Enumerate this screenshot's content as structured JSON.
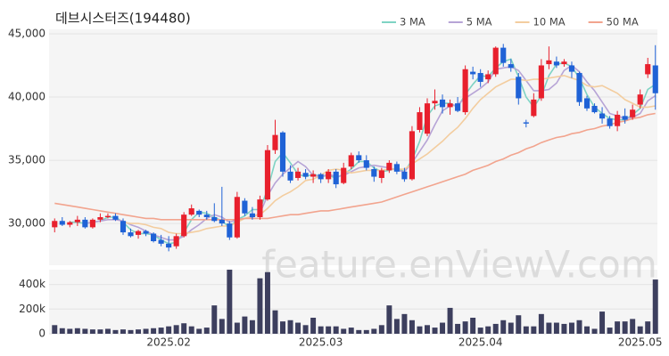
{
  "chart_data": {
    "type": "candlestick",
    "title": "데브시스터즈(194480)",
    "watermark": "feature.enViewV.com",
    "up_color": "#e8202d",
    "down_color": "#1f62d6",
    "categories": [
      null,
      null,
      null,
      null,
      null,
      null,
      null,
      null,
      null,
      null,
      null,
      null,
      null,
      null,
      null,
      "2025.02",
      null,
      null,
      null,
      null,
      null,
      null,
      null,
      null,
      null,
      null,
      null,
      null,
      null,
      null,
      null,
      null,
      null,
      null,
      null,
      "2025.03",
      null,
      null,
      null,
      null,
      null,
      null,
      null,
      null,
      null,
      null,
      null,
      null,
      null,
      null,
      null,
      null,
      null,
      null,
      null,
      null,
      "2025.04",
      null,
      null,
      null,
      null,
      null,
      null,
      null,
      null,
      null,
      null,
      null,
      null,
      null,
      null,
      null,
      null,
      null,
      null,
      null,
      null,
      "2025.05",
      null,
      null
    ],
    "open": [
      29700,
      30200,
      29900,
      30100,
      30300,
      29700,
      30300,
      30500,
      30600,
      30200,
      29300,
      29100,
      29400,
      29200,
      28700,
      28400,
      28200,
      29000,
      30700,
      31000,
      30700,
      30500,
      30300,
      30000,
      28900,
      31800,
      30800,
      30500,
      31900,
      35800,
      37200,
      34100,
      33600,
      34000,
      33700,
      33900,
      33500,
      34100,
      33200,
      34500,
      35400,
      35000,
      34300,
      33600,
      34200,
      34700,
      34100,
      33500,
      37400,
      37100,
      39500,
      39800,
      39200,
      39500,
      38800,
      42000,
      41900,
      41400,
      41800,
      43900,
      42600,
      41600,
      38000,
      38500,
      39900,
      42600,
      42800,
      42600,
      42500,
      41900,
      39900,
      39300,
      38700,
      38300,
      37700,
      38500,
      38400,
      39400,
      41800,
      42500
    ],
    "high": [
      30400,
      30500,
      30200,
      30600,
      30500,
      30400,
      30800,
      30800,
      30800,
      30400,
      29600,
      29500,
      29500,
      29300,
      29100,
      29000,
      29200,
      30900,
      31500,
      31100,
      31000,
      31600,
      32900,
      30200,
      32500,
      32000,
      31300,
      32200,
      36200,
      38200,
      37300,
      34600,
      34400,
      34300,
      34200,
      34000,
      34300,
      34300,
      34800,
      35600,
      35700,
      35400,
      34500,
      34400,
      35000,
      34900,
      34400,
      37700,
      39200,
      39900,
      40600,
      40200,
      39800,
      40000,
      42500,
      42400,
      42200,
      42100,
      44000,
      44200,
      43000,
      41900,
      38200,
      40300,
      43000,
      44000,
      43200,
      43000,
      42800,
      42000,
      40100,
      39500,
      39200,
      38500,
      38900,
      39100,
      39400,
      40600,
      43100,
      44100
    ],
    "low": [
      29300,
      29800,
      29700,
      29800,
      29600,
      29600,
      30100,
      30400,
      30200,
      29100,
      28900,
      28800,
      29000,
      28500,
      28200,
      27800,
      28000,
      28900,
      30600,
      30500,
      30300,
      30100,
      29800,
      28700,
      28800,
      30600,
      30300,
      30300,
      31800,
      35500,
      33700,
      33200,
      33400,
      33500,
      33200,
      33200,
      33200,
      32800,
      33100,
      34300,
      34800,
      34200,
      33300,
      33200,
      34000,
      33900,
      33300,
      33400,
      37200,
      36900,
      39000,
      38700,
      38600,
      38800,
      38600,
      41400,
      40800,
      41100,
      41600,
      42400,
      42000,
      39400,
      37600,
      38400,
      39700,
      42200,
      42300,
      42400,
      41500,
      39300,
      38900,
      38700,
      37900,
      37500,
      37300,
      37900,
      38200,
      39100,
      41500,
      39000
    ],
    "close": [
      30200,
      29900,
      30100,
      30300,
      29700,
      30300,
      30500,
      30600,
      30300,
      29300,
      29000,
      29400,
      29200,
      28600,
      28400,
      28100,
      29000,
      30700,
      31200,
      30700,
      30500,
      30200,
      30000,
      28900,
      32100,
      30800,
      30500,
      31900,
      35800,
      37000,
      34100,
      33400,
      34100,
      33700,
      33900,
      33500,
      34100,
      33100,
      34400,
      35400,
      35000,
      34400,
      33700,
      34200,
      34800,
      34100,
      33500,
      37300,
      38800,
      39500,
      39700,
      39200,
      39500,
      38900,
      42200,
      41800,
      41200,
      41800,
      43900,
      42700,
      42300,
      39900,
      37900,
      39800,
      42500,
      42900,
      42500,
      42800,
      42000,
      39600,
      39100,
      38800,
      38300,
      37700,
      38600,
      38200,
      39000,
      40200,
      42600,
      40300
    ],
    "series": [
      {
        "name": "3 MA",
        "color": "#7fd3c4",
        "values": [
          null,
          null,
          30100,
          30100,
          30000,
          30100,
          30200,
          30500,
          30500,
          30100,
          29500,
          29200,
          29200,
          29100,
          28700,
          28400,
          28500,
          29300,
          30300,
          30900,
          30800,
          30500,
          30200,
          29700,
          30300,
          30600,
          31100,
          31100,
          32700,
          34900,
          35600,
          34800,
          33900,
          33700,
          33900,
          33700,
          33800,
          33600,
          33900,
          34300,
          34900,
          34900,
          34400,
          34100,
          34200,
          34400,
          34100,
          35000,
          36500,
          38500,
          39300,
          39500,
          39500,
          39200,
          40200,
          41000,
          41700,
          41600,
          42300,
          42800,
          43000,
          41600,
          40000,
          39200,
          40100,
          41700,
          42600,
          42700,
          42400,
          41500,
          40200,
          39200,
          38700,
          38300,
          38200,
          38200,
          38600,
          39100,
          40600,
          41000
        ]
      },
      {
        "name": "5 MA",
        "color": "#b7a4d6",
        "values": [
          null,
          null,
          null,
          null,
          30000,
          30100,
          30200,
          30300,
          30300,
          30200,
          29900,
          29700,
          29400,
          29100,
          28900,
          28700,
          28700,
          29000,
          29500,
          29900,
          30400,
          30700,
          30500,
          30100,
          30300,
          30400,
          30500,
          30800,
          32200,
          33200,
          33900,
          34400,
          34900,
          34500,
          33800,
          33700,
          33900,
          33700,
          33800,
          34100,
          34400,
          34500,
          34600,
          34500,
          34400,
          34200,
          34100,
          34800,
          35700,
          36600,
          37800,
          38900,
          39300,
          39400,
          39900,
          40300,
          40700,
          41200,
          42200,
          42300,
          42400,
          42100,
          41300,
          40500,
          40500,
          40600,
          41100,
          42100,
          42500,
          42000,
          41200,
          40500,
          39600,
          38700,
          38500,
          38300,
          38400,
          38700,
          39700,
          40100
        ]
      },
      {
        "name": "10 MA",
        "color": "#f3cd9f",
        "values": [
          null,
          null,
          null,
          null,
          null,
          null,
          null,
          null,
          null,
          30100,
          30000,
          30000,
          29900,
          29700,
          29600,
          29300,
          29200,
          29200,
          29300,
          29400,
          29600,
          29700,
          29800,
          29800,
          30100,
          30400,
          30600,
          30700,
          31200,
          31800,
          32200,
          32500,
          32900,
          33400,
          33500,
          33800,
          34200,
          34300,
          34200,
          34000,
          34100,
          34200,
          34200,
          34200,
          34300,
          34300,
          34300,
          34700,
          35100,
          35500,
          36000,
          36500,
          37100,
          37600,
          38300,
          39100,
          39800,
          40300,
          40800,
          41100,
          41400,
          41400,
          41300,
          41400,
          41400,
          41500,
          41600,
          41700,
          41500,
          41300,
          40900,
          40800,
          40900,
          40600,
          40300,
          39800,
          39500,
          39200,
          39200,
          39300
        ]
      },
      {
        "name": "50 MA",
        "color": "#f2a48e",
        "values": [
          31600,
          31500,
          31400,
          31300,
          31200,
          31100,
          31000,
          30900,
          30800,
          30700,
          30600,
          30500,
          30400,
          30400,
          30300,
          30300,
          30300,
          30300,
          30300,
          30300,
          30300,
          30300,
          30300,
          30300,
          30300,
          30400,
          30400,
          30400,
          30400,
          30500,
          30600,
          30700,
          30700,
          30800,
          30900,
          31000,
          31000,
          31100,
          31200,
          31300,
          31400,
          31500,
          31600,
          31700,
          31900,
          32100,
          32300,
          32500,
          32700,
          32900,
          33100,
          33300,
          33500,
          33700,
          33900,
          34200,
          34400,
          34600,
          34900,
          35100,
          35400,
          35600,
          35900,
          36100,
          36400,
          36600,
          36800,
          36900,
          37100,
          37200,
          37400,
          37500,
          37700,
          37800,
          38000,
          38100,
          38300,
          38400,
          38600,
          38700
        ]
      }
    ],
    "ylim": [
      26700,
      45350
    ],
    "yticks": [
      {
        "value": 30000,
        "label": "30,000"
      },
      {
        "value": 35000,
        "label": "35,000"
      },
      {
        "value": 40000,
        "label": "40,000"
      },
      {
        "value": 45000,
        "label": "45,000"
      }
    ],
    "volume": {
      "color": "#3d3f5e",
      "ylim": [
        0,
        520000
      ],
      "yticks": [
        0,
        {
          "value": 200000,
          "label": "200k"
        },
        {
          "value": 400000,
          "label": "400k"
        }
      ],
      "values": [
        70000,
        45000,
        40000,
        45000,
        40000,
        35000,
        35000,
        40000,
        30000,
        35000,
        30000,
        35000,
        40000,
        45000,
        50000,
        60000,
        70000,
        85000,
        60000,
        40000,
        50000,
        230000,
        120000,
        520000,
        90000,
        140000,
        110000,
        450000,
        500000,
        190000,
        100000,
        110000,
        90000,
        70000,
        130000,
        60000,
        60000,
        60000,
        40000,
        50000,
        30000,
        30000,
        40000,
        70000,
        230000,
        120000,
        160000,
        110000,
        60000,
        70000,
        50000,
        90000,
        210000,
        80000,
        100000,
        130000,
        50000,
        60000,
        80000,
        110000,
        90000,
        150000,
        60000,
        60000,
        160000,
        90000,
        90000,
        80000,
        90000,
        110000,
        60000,
        40000,
        180000,
        50000,
        100000,
        100000,
        120000,
        60000,
        100000,
        440000
      ]
    }
  }
}
